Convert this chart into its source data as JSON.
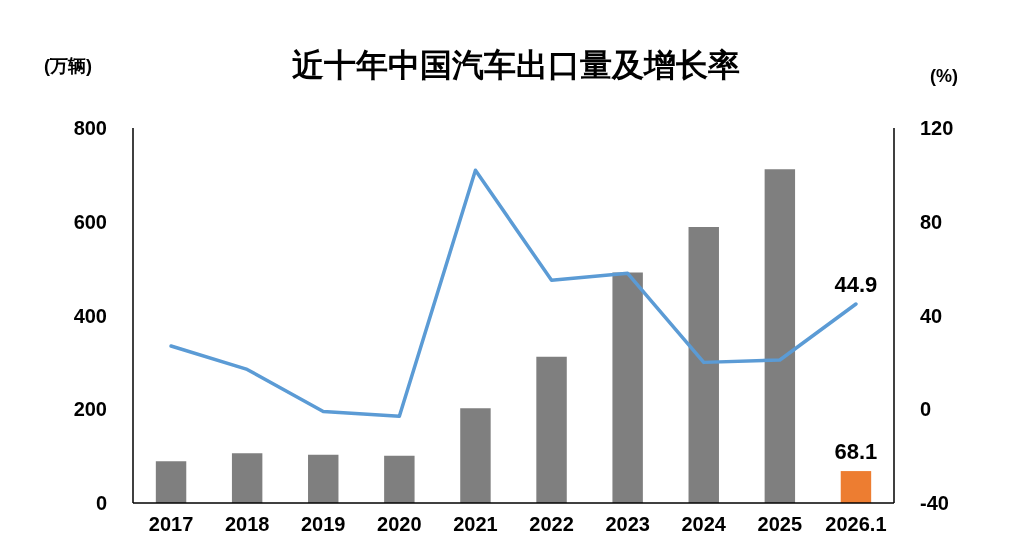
{
  "chart_data": {
    "type": "bar",
    "title": "近十年中国汽车出口量及增长率",
    "ylabel": "(万辆)",
    "y2label": "(%)",
    "categories": [
      "2017",
      "2018",
      "2019",
      "2020",
      "2021",
      "2022",
      "2023",
      "2024",
      "2025",
      "2026.1"
    ],
    "series": [
      {
        "colors": [
          "#7f7f7f",
          "#7f7f7f",
          "#7f7f7f",
          "#7f7f7f",
          "#7f7f7f",
          "#7f7f7f",
          "#7f7f7f",
          "#7f7f7f",
          "#7f7f7f",
          "#ed7d31"
        ],
        "values": [
          89,
          106,
          103,
          101,
          202,
          312,
          492,
          589,
          712,
          68.1
        ],
        "value_labels": [
          null,
          null,
          null,
          null,
          null,
          null,
          null,
          null,
          null,
          "68.1"
        ]
      },
      {
        "type": "line",
        "axis": "y2",
        "color": "#5b9bd5",
        "values": [
          27,
          17,
          -1,
          -3,
          102,
          55,
          58,
          20,
          21,
          44.9
        ],
        "value_labels": [
          null,
          null,
          null,
          null,
          null,
          null,
          null,
          null,
          null,
          "44.9"
        ]
      }
    ],
    "ylim": [
      0,
      800
    ],
    "yticks": [
      0,
      200,
      400,
      600,
      800
    ],
    "y2lim": [
      -40,
      120
    ],
    "y2ticks": [
      -40,
      0,
      40,
      80,
      120
    ],
    "grid": false,
    "legend": false,
    "marker": "none",
    "line_style": "solid"
  }
}
